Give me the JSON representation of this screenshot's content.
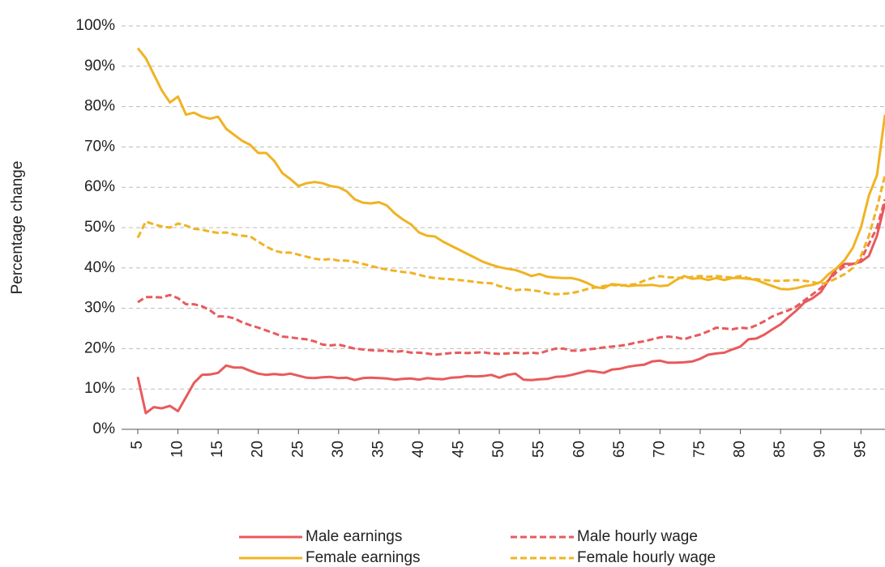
{
  "chart_data": {
    "type": "line",
    "y_label": "Percentage change",
    "x": [
      5,
      6,
      7,
      8,
      9,
      10,
      11,
      12,
      13,
      14,
      15,
      16,
      17,
      18,
      19,
      20,
      21,
      22,
      23,
      24,
      25,
      26,
      27,
      28,
      29,
      30,
      31,
      32,
      33,
      34,
      35,
      36,
      37,
      38,
      39,
      40,
      41,
      42,
      43,
      44,
      45,
      46,
      47,
      48,
      49,
      50,
      51,
      52,
      53,
      54,
      55,
      56,
      57,
      58,
      59,
      60,
      61,
      62,
      63,
      64,
      65,
      66,
      67,
      68,
      69,
      70,
      71,
      72,
      73,
      74,
      75,
      76,
      77,
      78,
      79,
      80,
      81,
      82,
      83,
      84,
      85,
      86,
      87,
      88,
      89,
      90,
      91,
      92,
      93,
      94,
      95,
      96,
      97,
      98
    ],
    "xlim": [
      5,
      98
    ],
    "xticks": [
      5,
      10,
      15,
      20,
      25,
      30,
      35,
      40,
      45,
      50,
      55,
      60,
      65,
      70,
      75,
      80,
      85,
      90,
      95
    ],
    "ylim": [
      0,
      100
    ],
    "yticks": [
      {
        "value": 0,
        "label": "0%"
      },
      {
        "value": 10,
        "label": "10%"
      },
      {
        "value": 20,
        "label": "20%"
      },
      {
        "value": 30,
        "label": "30%"
      },
      {
        "value": 40,
        "label": "40%"
      },
      {
        "value": 50,
        "label": "50%"
      },
      {
        "value": 60,
        "label": "60%"
      },
      {
        "value": 70,
        "label": "70%"
      },
      {
        "value": 80,
        "label": "80%"
      },
      {
        "value": 90,
        "label": "90%"
      },
      {
        "value": 100,
        "label": "100%"
      }
    ],
    "grid": true,
    "legend": "bottom",
    "series": [
      {
        "name": "Male earnings",
        "color": "#e85a5c",
        "style": "solid",
        "values": [
          13,
          4,
          5.5,
          5.2,
          5.8,
          4.5,
          8,
          11.5,
          13.5,
          13.6,
          14,
          15.8,
          15.3,
          15.3,
          14.5,
          13.8,
          13.5,
          13.7,
          13.5,
          13.8,
          13.3,
          12.8,
          12.7,
          12.9,
          13,
          12.7,
          12.8,
          12.2,
          12.7,
          12.8,
          12.7,
          12.6,
          12.3,
          12.5,
          12.6,
          12.3,
          12.7,
          12.5,
          12.4,
          12.8,
          12.9,
          13.2,
          13.1,
          13.2,
          13.5,
          12.8,
          13.5,
          13.8,
          12.3,
          12.2,
          12.4,
          12.5,
          13,
          13.1,
          13.5,
          14,
          14.5,
          14.3,
          14,
          14.8,
          15,
          15.5,
          15.8,
          16,
          16.8,
          17,
          16.5,
          16.5,
          16.6,
          16.8,
          17.5,
          18.5,
          18.8,
          19,
          19.8,
          20.5,
          22.3,
          22.5,
          23.5,
          24.8,
          26,
          27.8,
          29.5,
          31.5,
          32.5,
          34,
          37,
          40,
          41,
          41,
          41.5,
          43,
          48,
          56
        ]
      },
      {
        "name": "Male hourly wage",
        "color": "#e85a5c",
        "style": "dashed",
        "values": [
          31.5,
          32.8,
          32.8,
          32.7,
          33.3,
          32.5,
          31,
          31,
          30.5,
          29.5,
          28,
          28,
          27.5,
          26.5,
          25.8,
          25.2,
          24.5,
          23.8,
          23,
          22.8,
          22.5,
          22.3,
          21.8,
          21,
          20.8,
          21,
          20.5,
          20,
          19.8,
          19.6,
          19.5,
          19.5,
          19.2,
          19.4,
          19,
          19,
          18.8,
          18.5,
          18.7,
          18.9,
          19,
          18.9,
          19,
          19.1,
          18.8,
          18.7,
          18.8,
          19,
          18.8,
          19,
          18.8,
          19.5,
          20,
          20,
          19.5,
          19.5,
          19.8,
          20,
          20.3,
          20.5,
          20.7,
          21,
          21.5,
          21.8,
          22.3,
          22.8,
          23,
          22.8,
          22.3,
          23,
          23.5,
          24.3,
          25.2,
          25,
          24.8,
          25.2,
          25,
          25.8,
          26.8,
          28,
          28.8,
          29.5,
          30.5,
          32,
          33.5,
          35,
          37,
          39,
          40.5,
          41,
          42,
          46,
          50,
          57
        ]
      },
      {
        "name": "Female earnings",
        "color": "#f0b323",
        "style": "solid",
        "values": [
          94.5,
          92,
          88,
          84,
          81,
          82.5,
          78,
          78.5,
          77.5,
          77,
          77.5,
          74.5,
          73,
          71.5,
          70.5,
          68.5,
          68.5,
          66.5,
          63.5,
          62,
          60.3,
          61,
          61.3,
          61,
          60.3,
          60,
          59,
          57,
          56.2,
          56,
          56.3,
          55.5,
          53.5,
          52,
          50.8,
          48.8,
          48,
          47.8,
          46.5,
          45.5,
          44.5,
          43.5,
          42.5,
          41.5,
          40.8,
          40.2,
          39.8,
          39.5,
          38.8,
          38,
          38.5,
          37.8,
          37.6,
          37.5,
          37.5,
          37,
          36.2,
          35.2,
          35,
          36,
          35.8,
          35.5,
          35.7,
          35.7,
          35.8,
          35.5,
          35.7,
          37,
          38,
          37.3,
          37.5,
          37,
          37.5,
          37,
          37.5,
          37.5,
          37.3,
          37,
          36.2,
          35.5,
          34.8,
          34.7,
          35,
          35.5,
          35.8,
          36.5,
          38.5,
          40,
          42,
          45,
          50,
          58,
          63,
          78
        ]
      },
      {
        "name": "Female hourly wage",
        "color": "#f0b323",
        "style": "dashed",
        "values": [
          47.5,
          51.5,
          50.8,
          50.3,
          50,
          51,
          50.5,
          49.7,
          49.5,
          49,
          48.7,
          48.8,
          48.3,
          48,
          47.8,
          46.5,
          45.3,
          44.3,
          43.8,
          43.8,
          43.3,
          42.8,
          42.3,
          42,
          42.2,
          41.8,
          41.8,
          41.5,
          41,
          40.5,
          40,
          39.6,
          39.3,
          39,
          38.8,
          38.3,
          37.8,
          37.5,
          37.3,
          37.2,
          37,
          36.8,
          36.5,
          36.3,
          36.2,
          35.5,
          35,
          34.5,
          34.7,
          34.5,
          34.2,
          33.7,
          33.5,
          33.6,
          33.8,
          34.2,
          34.8,
          35.2,
          35.5,
          35.8,
          35.6,
          35.8,
          36,
          36.8,
          37.5,
          38,
          37.7,
          37.6,
          37.5,
          37.8,
          38,
          37.8,
          38,
          37.8,
          37.6,
          38,
          37.5,
          37.2,
          37,
          36.8,
          36.8,
          36.9,
          37,
          36.8,
          36.5,
          36,
          36.5,
          37.5,
          38.5,
          40,
          43,
          48,
          55,
          63
        ]
      }
    ]
  }
}
